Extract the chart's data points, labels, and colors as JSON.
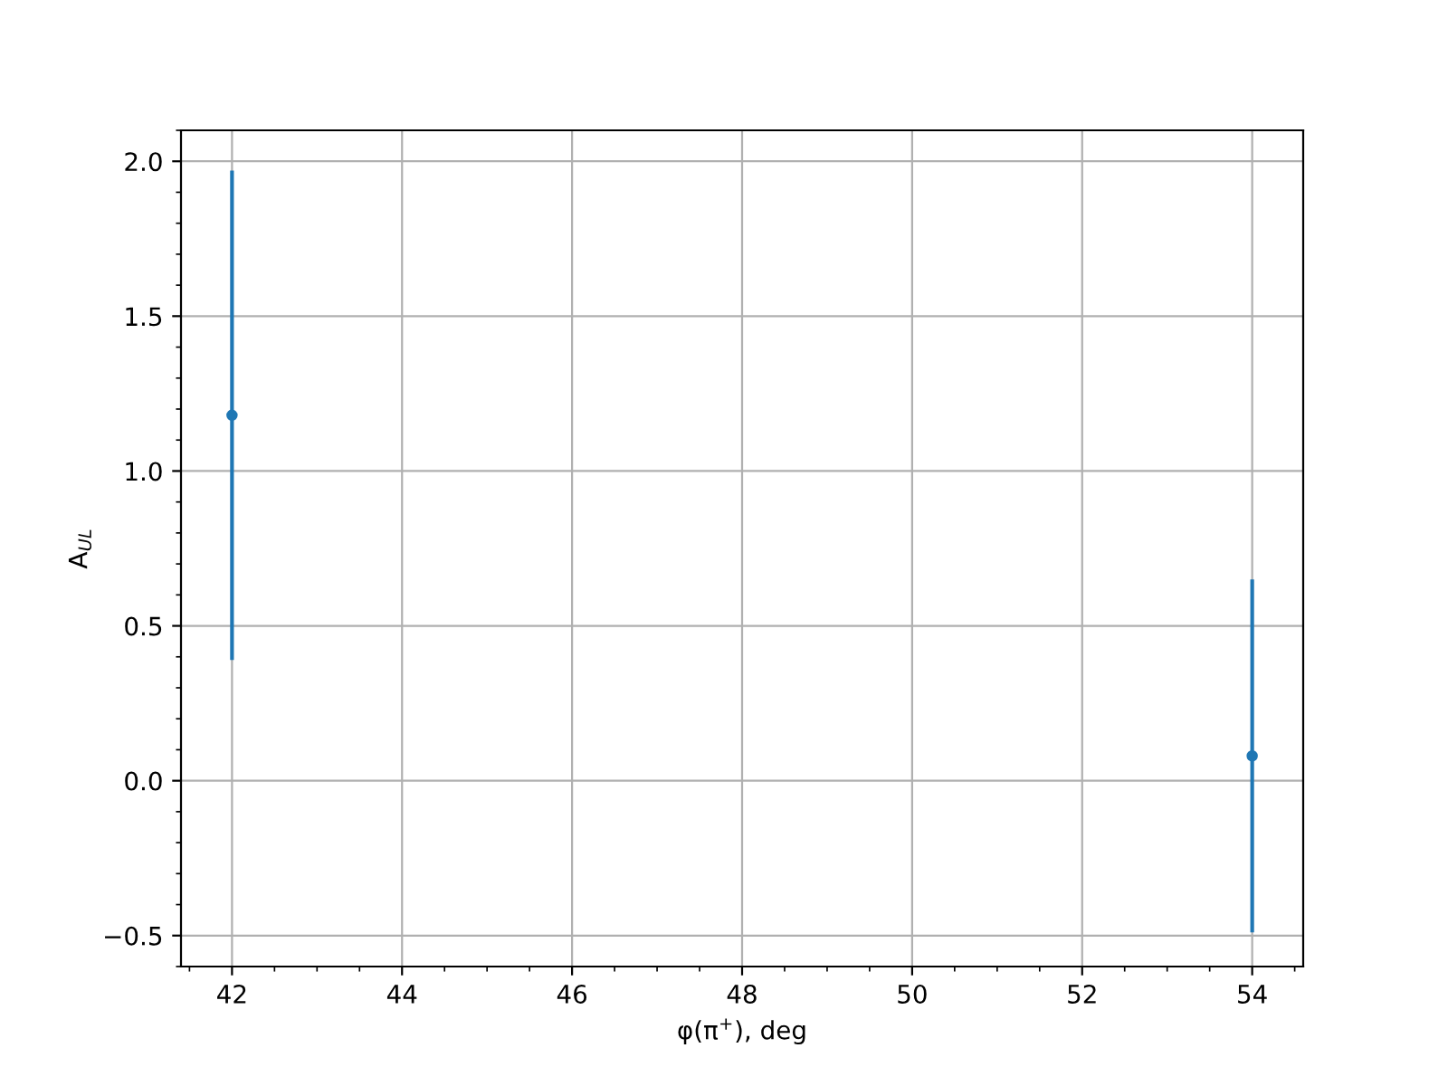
{
  "chart_data": {
    "type": "scatter",
    "xlabel": "φ(π$^{+}$), deg",
    "ylabel": "A$_{UL}$",
    "x": [
      42,
      54
    ],
    "series": [
      {
        "color": "#1f77b4",
        "values": [
          1.18,
          0.08
        ],
        "errors": [
          0.79,
          0.57
        ]
      }
    ],
    "xlim": [
      41.4,
      54.6
    ],
    "ylim": [
      -0.6,
      2.1
    ],
    "xticks": [
      42,
      44,
      46,
      48,
      50,
      52,
      54
    ],
    "yticks": [
      {
        "value": -0.5,
        "label": "−0.5"
      },
      {
        "value": 0,
        "label": "0.0"
      },
      {
        "value": 0.5,
        "label": "0.5"
      },
      {
        "value": 1,
        "label": "1.0"
      },
      {
        "value": 1.5,
        "label": "1.5"
      },
      {
        "value": 2,
        "label": "2.0"
      }
    ],
    "grid": true,
    "marker": "circle"
  }
}
